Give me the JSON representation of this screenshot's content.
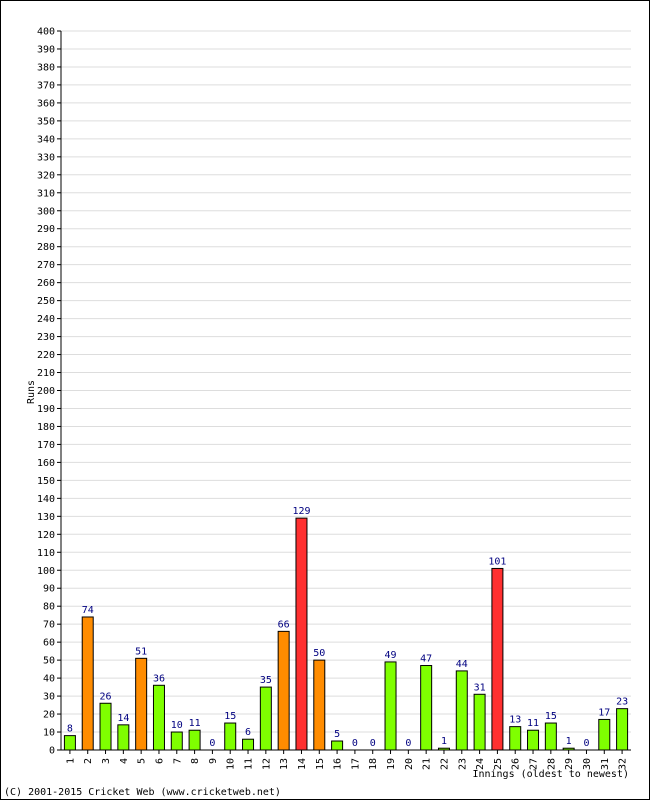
{
  "chart_data": {
    "type": "bar",
    "title": "",
    "ylabel": "Runs",
    "xlabel": "Innings (oldest to newest)",
    "ylim": [
      0,
      400
    ],
    "ytick_step": 10,
    "grid": true,
    "categories": [
      "1",
      "2",
      "3",
      "4",
      "5",
      "6",
      "7",
      "8",
      "9",
      "10",
      "11",
      "12",
      "13",
      "14",
      "15",
      "16",
      "17",
      "18",
      "19",
      "20",
      "21",
      "22",
      "23",
      "24",
      "25",
      "26",
      "27",
      "28",
      "29",
      "30",
      "31",
      "32"
    ],
    "values": [
      8,
      74,
      26,
      14,
      51,
      36,
      10,
      11,
      0,
      15,
      6,
      35,
      66,
      129,
      50,
      5,
      0,
      0,
      49,
      0,
      47,
      1,
      44,
      31,
      101,
      13,
      11,
      15,
      1,
      0,
      17,
      23
    ],
    "value_labels": [
      "8",
      "74",
      "26",
      "14",
      "51",
      "36",
      "10",
      "11",
      "0",
      "15",
      "6",
      "35",
      "66",
      "129",
      "50",
      "5",
      "0",
      "0",
      "49",
      "0",
      "47",
      "1",
      "44",
      "31",
      "101",
      "13",
      "11",
      "15",
      "1",
      "0",
      "17",
      "23"
    ],
    "colors": {
      "under_50": "#7FFF00",
      "fifty": "#FF8C00",
      "hundred": "#FF3030",
      "label": "#000080",
      "grid": "#DDDDDD"
    }
  },
  "footer": {
    "copyright": "(C) 2001-2015 Cricket Web (www.cricketweb.net)"
  }
}
